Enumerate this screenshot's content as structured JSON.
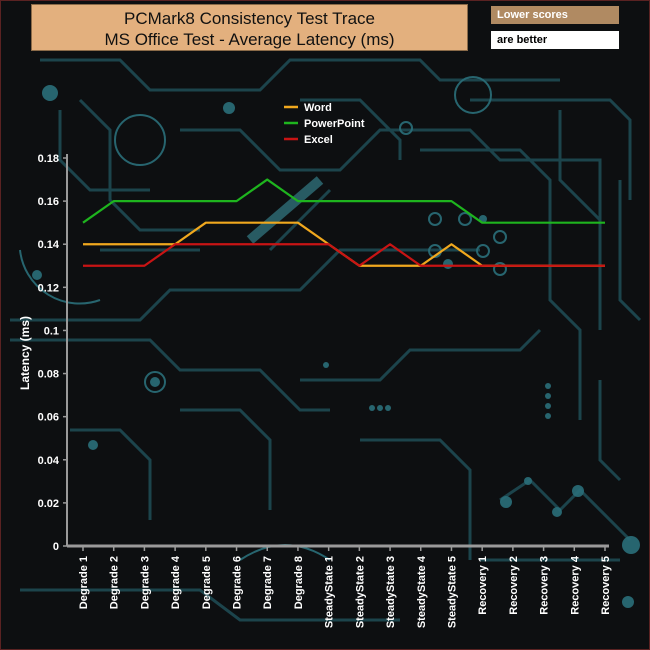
{
  "title": {
    "line1": "PCMark8 Consistency Test Trace",
    "line2": "MS Office Test -  Average Latency (ms)"
  },
  "note": {
    "line1": "Lower scores",
    "line2": "are better",
    "color_top": "#b08a62",
    "color_bottom": "#ffffff"
  },
  "colors": {
    "title_bg": "#e3b07e",
    "background": "#0d0f11",
    "circuit": "#1f4e57"
  },
  "chart_data": {
    "type": "line",
    "categories": [
      "Degrade 1",
      "Degrade 2",
      "Degrade 3",
      "Degrade 4",
      "Degrade 5",
      "Degrade 6",
      "Degrade 7",
      "Degrade 8",
      "SteadyState 1",
      "SteadyState 2",
      "SteadyState 3",
      "SteadyState 4",
      "SteadyState 5",
      "Recovery 1",
      "Recovery 2",
      "Recovery 3",
      "Recovery 4",
      "Recovery 5"
    ],
    "series": [
      {
        "name": "Word",
        "color": "#f0a81e",
        "values": [
          0.14,
          0.14,
          0.14,
          0.14,
          0.15,
          0.15,
          0.15,
          0.15,
          0.14,
          0.13,
          0.13,
          0.13,
          0.14,
          0.13,
          0.13,
          0.13,
          0.13,
          0.13
        ]
      },
      {
        "name": "PowerPoint",
        "color": "#1eb41e",
        "values": [
          0.15,
          0.16,
          0.16,
          0.16,
          0.16,
          0.16,
          0.17,
          0.16,
          0.16,
          0.16,
          0.16,
          0.16,
          0.16,
          0.15,
          0.15,
          0.15,
          0.15,
          0.15
        ]
      },
      {
        "name": "Excel",
        "color": "#c81414",
        "values": [
          0.13,
          0.13,
          0.13,
          0.14,
          0.14,
          0.14,
          0.14,
          0.14,
          0.14,
          0.13,
          0.14,
          0.13,
          0.13,
          0.13,
          0.13,
          0.13,
          0.13,
          0.13
        ]
      }
    ],
    "ylabel": "Latency (ms)",
    "xlabel": "",
    "ylim": [
      0,
      0.18
    ],
    "yticks": [
      "0",
      "0.02",
      "0.04",
      "0.06",
      "0.08",
      "0.1",
      "0.12",
      "0.14",
      "0.16",
      "0.18"
    ],
    "ytick_values": [
      0,
      0.02,
      0.04,
      0.06,
      0.08,
      0.1,
      0.12,
      0.14,
      0.16,
      0.18
    ],
    "grid": false,
    "legend": "top-center"
  }
}
